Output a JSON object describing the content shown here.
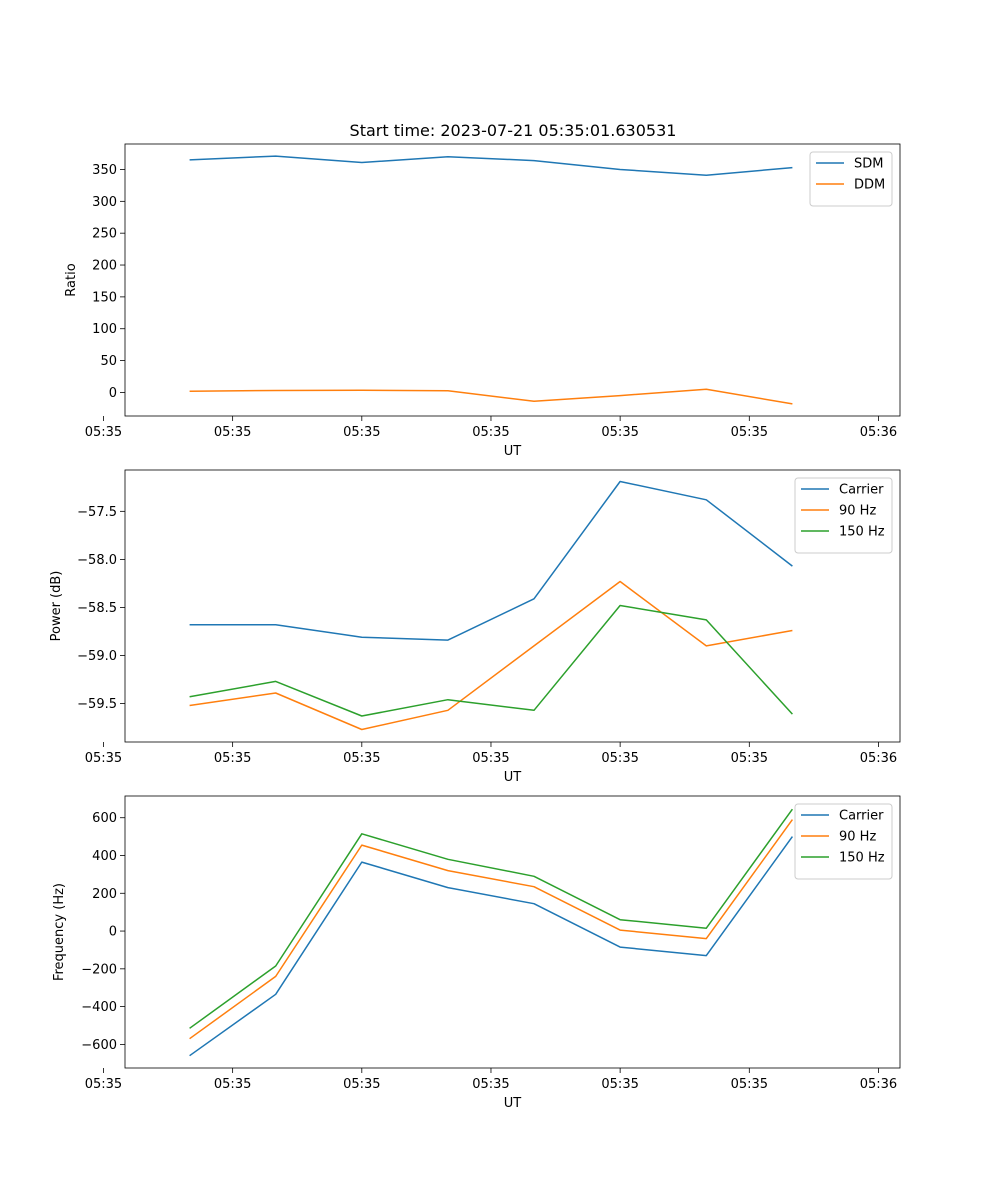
{
  "figure_title": "Start time: 2023-07-21 05:35:01.630531",
  "colors": {
    "blue": "#1f77b4",
    "orange": "#ff7f0e",
    "green": "#2ca02c"
  },
  "chart_data": [
    {
      "type": "line",
      "title": "Start time: 2023-07-21 05:35:01.630531",
      "xlabel": "UT",
      "ylabel": "Ratio",
      "x_index": [
        1,
        2,
        3,
        4,
        5,
        6,
        7,
        8
      ],
      "xlim": [
        0.25,
        9.25
      ],
      "xticks": [
        0,
        1.5,
        3,
        4.5,
        6,
        7.5,
        9
      ],
      "xtick_labels": [
        "05:35",
        "05:35",
        "05:35",
        "05:35",
        "05:35",
        "05:35",
        "05:36"
      ],
      "ylim": [
        -37,
        390
      ],
      "yticks": [
        0,
        50,
        100,
        150,
        200,
        250,
        300,
        350
      ],
      "ytick_labels": [
        "0",
        "50",
        "100",
        "150",
        "200",
        "250",
        "300",
        "350"
      ],
      "legend_position": "top-right",
      "series": [
        {
          "name": "SDM",
          "color": "#1f77b4",
          "values": [
            365,
            371,
            361,
            370,
            364,
            350,
            341,
            353
          ]
        },
        {
          "name": "DDM",
          "color": "#ff7f0e",
          "values": [
            2,
            3,
            3.5,
            2.5,
            -14,
            -5,
            5,
            -18
          ]
        }
      ]
    },
    {
      "type": "line",
      "title": "",
      "xlabel": "UT",
      "ylabel": "Power (dB)",
      "x_index": [
        1,
        2,
        3,
        4,
        5,
        6,
        7,
        8
      ],
      "xlim": [
        0.25,
        9.25
      ],
      "xticks": [
        0,
        1.5,
        3,
        4.5,
        6,
        7.5,
        9
      ],
      "xtick_labels": [
        "05:35",
        "05:35",
        "05:35",
        "05:35",
        "05:35",
        "05:35",
        "05:36"
      ],
      "ylim": [
        -59.9,
        -57.07
      ],
      "yticks": [
        -59.5,
        -59.0,
        -58.5,
        -58.0,
        -57.5
      ],
      "ytick_labels": [
        "−59.5",
        "−59.0",
        "−58.5",
        "−58.0",
        "−57.5"
      ],
      "legend_position": "top-right",
      "series": [
        {
          "name": "Carrier",
          "color": "#1f77b4",
          "values": [
            -58.68,
            -58.68,
            -58.81,
            -58.84,
            -58.41,
            -57.19,
            -57.38,
            -58.07
          ]
        },
        {
          "name": "90 Hz",
          "color": "#ff7f0e",
          "values": [
            -59.52,
            -59.39,
            -59.77,
            -59.57,
            -58.9,
            -58.23,
            -58.9,
            -58.74
          ]
        },
        {
          "name": "150 Hz",
          "color": "#2ca02c",
          "values": [
            -59.43,
            -59.27,
            -59.63,
            -59.46,
            -59.57,
            -58.48,
            -58.63,
            -59.61
          ]
        }
      ]
    },
    {
      "type": "line",
      "title": "",
      "xlabel": "UT",
      "ylabel": "Frequency (Hz)",
      "x_index": [
        1,
        2,
        3,
        4,
        5,
        6,
        7,
        8
      ],
      "xlim": [
        0.25,
        9.25
      ],
      "xticks": [
        0,
        1.5,
        3,
        4.5,
        6,
        7.5,
        9
      ],
      "xtick_labels": [
        "05:35",
        "05:35",
        "05:35",
        "05:35",
        "05:35",
        "05:35",
        "05:36"
      ],
      "ylim": [
        -725,
        715
      ],
      "yticks": [
        -600,
        -400,
        -200,
        0,
        200,
        400,
        600
      ],
      "ytick_labels": [
        "−600",
        "−400",
        "−200",
        "0",
        "200",
        "400",
        "600"
      ],
      "legend_position": "top-right",
      "series": [
        {
          "name": "Carrier",
          "color": "#1f77b4",
          "values": [
            -660,
            -335,
            365,
            230,
            145,
            -85,
            -130,
            500
          ]
        },
        {
          "name": "90 Hz",
          "color": "#ff7f0e",
          "values": [
            -570,
            -240,
            455,
            320,
            235,
            5,
            -40,
            590
          ]
        },
        {
          "name": "150 Hz",
          "color": "#2ca02c",
          "values": [
            -515,
            -185,
            515,
            380,
            290,
            60,
            15,
            645
          ]
        }
      ]
    }
  ]
}
